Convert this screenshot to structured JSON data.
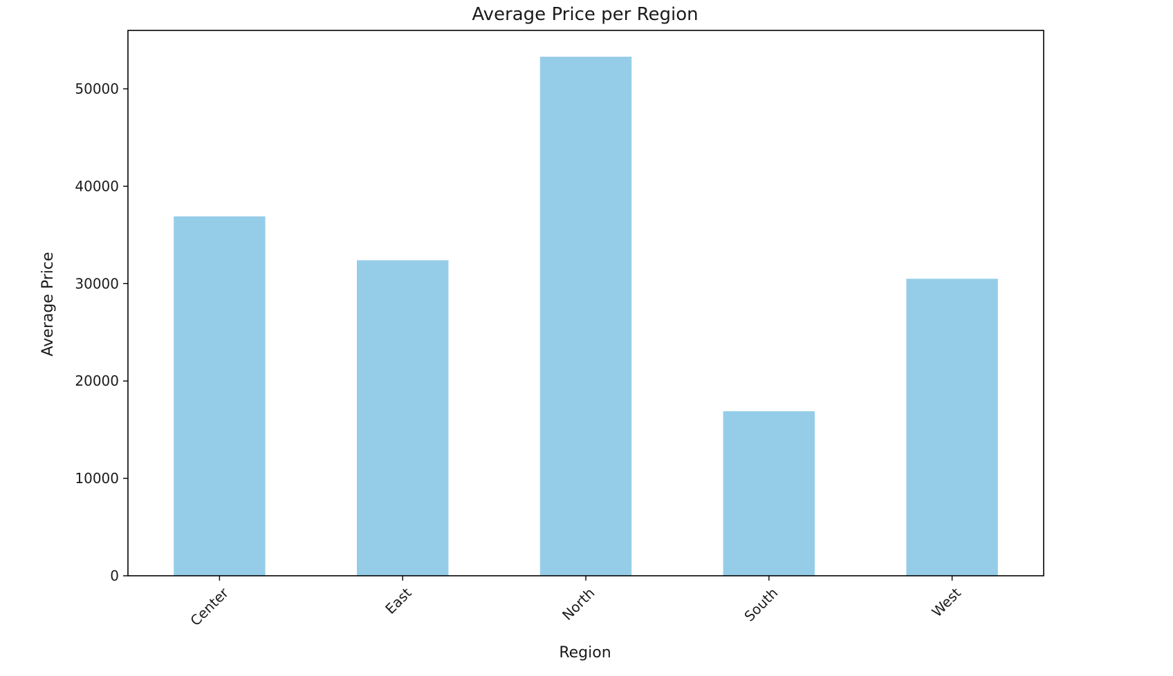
{
  "chart_data": {
    "type": "bar",
    "title": "Average Price per Region",
    "xlabel": "Region",
    "ylabel": "Average Price",
    "categories": [
      "Center",
      "East",
      "North",
      "South",
      "West"
    ],
    "values": [
      36900,
      32400,
      53300,
      16900,
      30500
    ],
    "ylim": [
      0,
      56000
    ],
    "yticks": [
      0,
      10000,
      20000,
      30000,
      40000,
      50000
    ],
    "ytick_labels": [
      "0",
      "10000",
      "20000",
      "30000",
      "40000",
      "50000"
    ],
    "grid": false,
    "legend": "none",
    "bar_color": "#95cde8",
    "axis_color": "#000000"
  }
}
